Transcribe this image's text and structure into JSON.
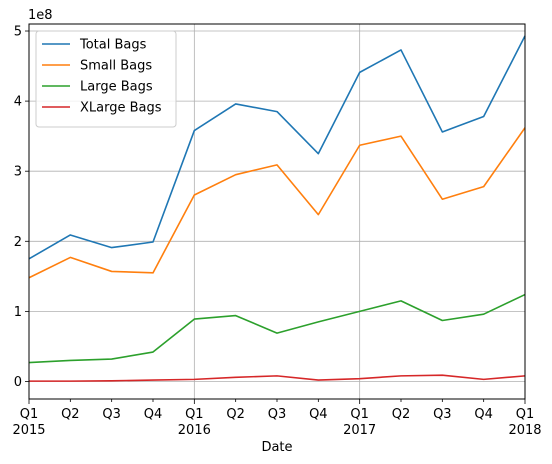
{
  "chart_data": {
    "type": "line",
    "xlabel": "Date",
    "ylabel": "",
    "y_offset_label": "1e8",
    "y_scale": 100000000,
    "ylim": [
      -0.25,
      5.1
    ],
    "yticks": [
      0,
      1,
      2,
      3,
      4,
      5
    ],
    "x_tick_labels": [
      "Q1\n2015",
      "Q2",
      "Q3",
      "Q4",
      "Q1\n2016",
      "Q2",
      "Q3",
      "Q4",
      "Q1\n2017",
      "Q2",
      "Q3",
      "Q4",
      "Q1\n2018"
    ],
    "x_major_gridlines_at": [
      4,
      8
    ],
    "grid": true,
    "legend_position": "top-left",
    "series": [
      {
        "name": "Total Bags",
        "color": "#1f77b4",
        "values": [
          1.75,
          2.09,
          1.91,
          1.99,
          3.58,
          3.96,
          3.85,
          3.25,
          4.41,
          4.73,
          3.56,
          3.78,
          4.93
        ]
      },
      {
        "name": "Small Bags",
        "color": "#ff7f0e",
        "values": [
          1.48,
          1.77,
          1.57,
          1.55,
          2.66,
          2.95,
          3.09,
          2.38,
          3.37,
          3.5,
          2.6,
          2.78,
          3.62
        ]
      },
      {
        "name": "Large Bags",
        "color": "#2ca02c",
        "values": [
          0.27,
          0.3,
          0.32,
          0.42,
          0.89,
          0.94,
          0.69,
          0.85,
          1.0,
          1.15,
          0.87,
          0.96,
          1.24
        ]
      },
      {
        "name": "XLarge Bags",
        "color": "#d62728",
        "values": [
          0.005,
          0.005,
          0.01,
          0.02,
          0.03,
          0.06,
          0.08,
          0.02,
          0.04,
          0.08,
          0.09,
          0.03,
          0.08
        ]
      }
    ]
  }
}
